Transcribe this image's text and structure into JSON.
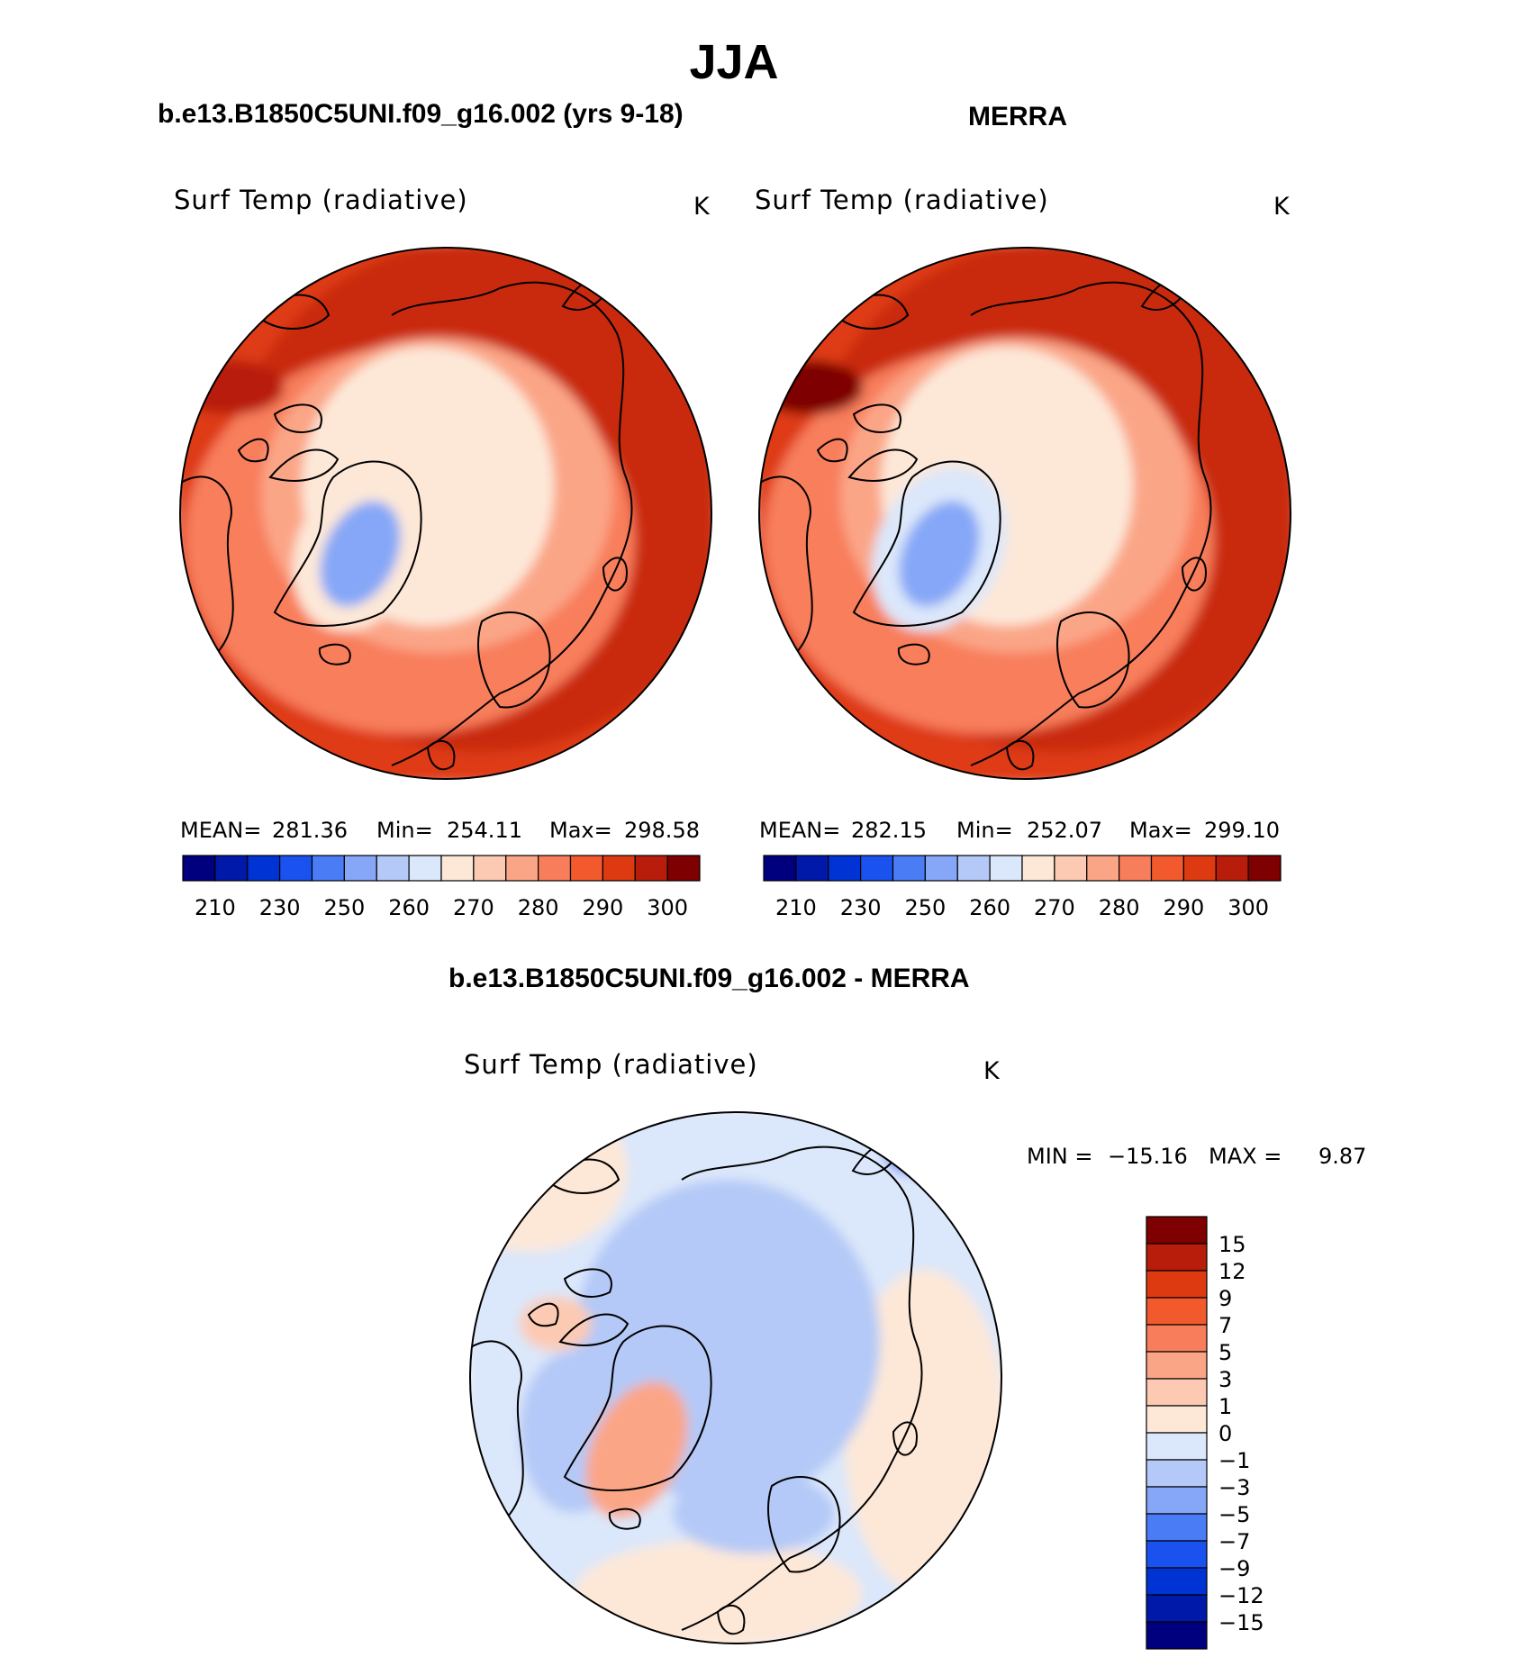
{
  "page_title": "JJA",
  "colors": {
    "seq_scale": [
      "#00007f",
      "#0019a8",
      "#0033d4",
      "#1a52f0",
      "#4a7cf5",
      "#86a7f7",
      "#b4c9f7",
      "#dbe7fa",
      "#fde8d8",
      "#fccab3",
      "#fba587",
      "#f87e5b",
      "#f25a2e",
      "#de3a12",
      "#b81c0a",
      "#7e0000"
    ],
    "diff_scale": [
      "#00007f",
      "#0019a8",
      "#0033d4",
      "#1a52f0",
      "#4a7cf5",
      "#86a7f7",
      "#b4c9f7",
      "#dbe7fa",
      "#fde8d8",
      "#fccab3",
      "#fba587",
      "#f87e5b",
      "#f25a2e",
      "#de3a12",
      "#b81c0a",
      "#7e0000"
    ]
  },
  "chart_data": [
    {
      "type": "heatmap",
      "panel_id": "model",
      "title": "b.e13.B1850C5UNI.f09_g16.002 (yrs 9-18)",
      "variable": "Surf Temp (radiative)",
      "units": "K",
      "stats": {
        "mean_label": "MEAN=",
        "mean": "281.36",
        "min_label": "Min=",
        "min": "254.11",
        "max_label": "Max=",
        "max": "298.58"
      },
      "colorbar_labels": [
        "210",
        "230",
        "250",
        "260",
        "270",
        "280",
        "290",
        "300"
      ],
      "field": {
        "pole": 268,
        "south": 290,
        "greenland_low": 254,
        "warm_ring": 295
      }
    },
    {
      "type": "heatmap",
      "panel_id": "obs",
      "title": "MERRA",
      "variable": "Surf Temp (radiative)",
      "units": "K",
      "stats": {
        "mean_label": "MEAN=",
        "mean": "282.15",
        "min_label": "Min=",
        "min": "252.07",
        "max_label": "Max=",
        "max": "299.10"
      },
      "colorbar_labels": [
        "210",
        "230",
        "250",
        "260",
        "270",
        "280",
        "290",
        "300"
      ],
      "field": {
        "pole": 268,
        "south": 292,
        "greenland_low": 252,
        "warm_ring": 297
      }
    },
    {
      "type": "heatmap",
      "panel_id": "diff",
      "title": "b.e13.B1850C5UNI.f09_g16.002 - MERRA",
      "variable": "Surf Temp (radiative)",
      "units": "K",
      "stats": {
        "min_label": "MIN =",
        "min": "−15.16",
        "max_label": "MAX =",
        "max": "9.87"
      },
      "colorbar_labels": [
        "15",
        "12",
        "9",
        "7",
        "5",
        "3",
        "1",
        "0",
        "−1",
        "−3",
        "−5",
        "−7",
        "−9",
        "−12",
        "−15"
      ]
    }
  ]
}
